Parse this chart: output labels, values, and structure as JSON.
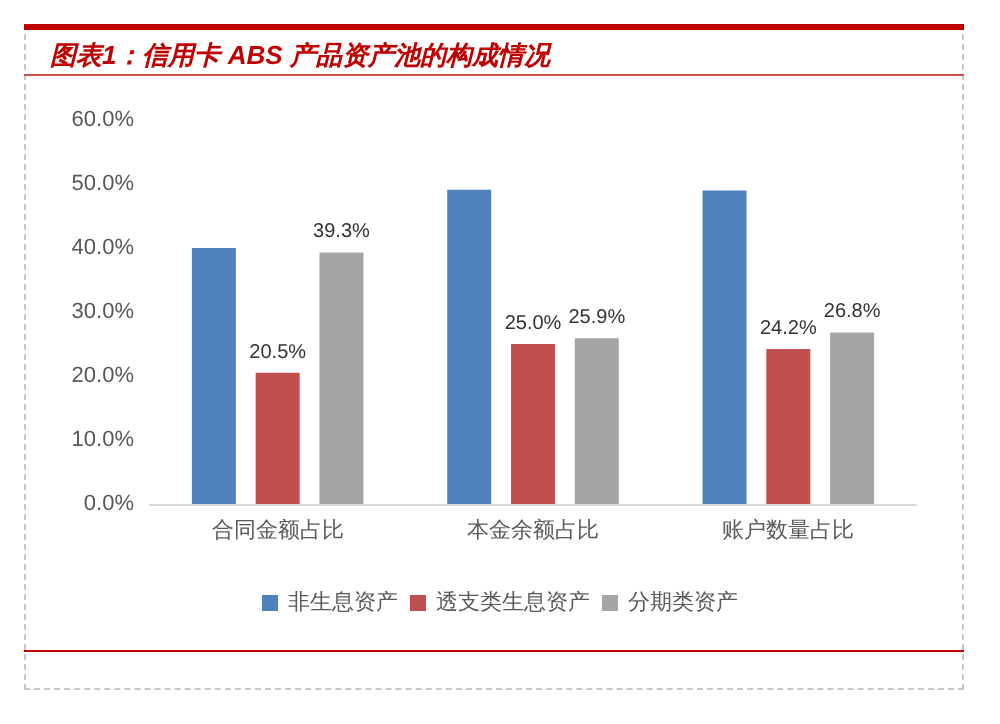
{
  "chart_data": {
    "type": "bar",
    "title": "图表1：信用卡 ABS 产品资产池的构成情况",
    "categories": [
      "合同金额占比",
      "本金余额占比",
      "账户数量占比"
    ],
    "series": [
      {
        "name": "非生息资产",
        "color": "#4f81bd",
        "values": [
          40.0,
          49.1,
          49.0
        ],
        "value_labels": [
          null,
          null,
          null
        ]
      },
      {
        "name": "透支类生息资产",
        "color": "#c0504d",
        "values": [
          20.5,
          25.0,
          24.2
        ],
        "value_labels": [
          "20.5%",
          "25.0%",
          "24.2%"
        ]
      },
      {
        "name": "分期类资产",
        "color": "#a5a5a5",
        "values": [
          39.3,
          25.9,
          26.8
        ],
        "value_labels": [
          "39.3%",
          "25.9%",
          "26.8%"
        ]
      }
    ],
    "ylim": [
      0,
      60
    ],
    "yticks": [
      {
        "value": 0,
        "label": "0.0%"
      },
      {
        "value": 10,
        "label": "10.0%"
      },
      {
        "value": 20,
        "label": "20.0%"
      },
      {
        "value": 30,
        "label": "30.0%"
      },
      {
        "value": 40,
        "label": "40.0%"
      },
      {
        "value": 50,
        "label": "50.0%"
      },
      {
        "value": 60,
        "label": "60.0%"
      }
    ],
    "grid": false,
    "legend": "bottom"
  }
}
